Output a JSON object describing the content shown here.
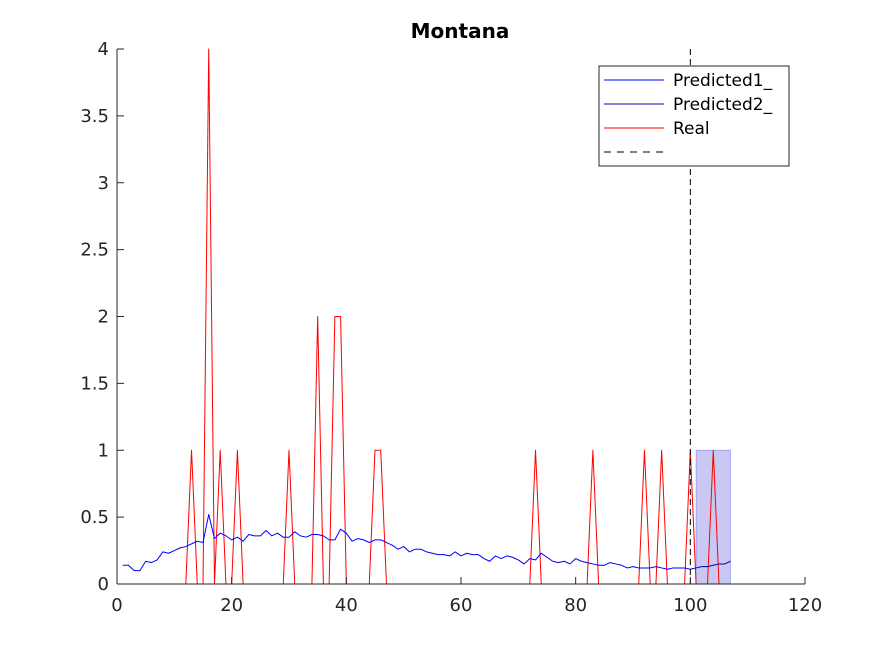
{
  "chart_data": {
    "type": "line",
    "title": "Montana",
    "xlabel": "",
    "ylabel": "",
    "xlim": [
      0,
      120
    ],
    "ylim": [
      0,
      4
    ],
    "xticks": [
      0,
      20,
      40,
      60,
      80,
      100,
      120
    ],
    "yticks": [
      0,
      0.5,
      1,
      1.5,
      2,
      2.5,
      3,
      3.5,
      4
    ],
    "grid": false,
    "legend_position": "top-right",
    "vline_x": 100,
    "shaded_region": {
      "x": [
        101,
        107
      ],
      "y": [
        0,
        1
      ],
      "color": "#c8c8f2"
    },
    "series": [
      {
        "name": "Predicted1_",
        "color": "#0000ff",
        "x": [
          1,
          2,
          3,
          4,
          5,
          6,
          7,
          8,
          9,
          10,
          11,
          12,
          13,
          14,
          15,
          16,
          17,
          18,
          19,
          20,
          21,
          22,
          23,
          24,
          25,
          26,
          27,
          28,
          29,
          30,
          31,
          32,
          33,
          34,
          35,
          36,
          37,
          38,
          39,
          40,
          41,
          42,
          43,
          44,
          45,
          46,
          47,
          48,
          49,
          50,
          51,
          52,
          53,
          54,
          55,
          56,
          57,
          58,
          59,
          60,
          61,
          62,
          63,
          64,
          65,
          66,
          67,
          68,
          69,
          70,
          71,
          72,
          73,
          74,
          75,
          76,
          77,
          78,
          79,
          80,
          81,
          82,
          83,
          84,
          85,
          86,
          87,
          88,
          89,
          90,
          91,
          92,
          93,
          94,
          95,
          96,
          97,
          98,
          99,
          100
        ],
        "y": [
          0.14,
          0.14,
          0.1,
          0.1,
          0.17,
          0.16,
          0.18,
          0.24,
          0.23,
          0.25,
          0.27,
          0.28,
          0.3,
          0.32,
          0.31,
          0.52,
          0.34,
          0.38,
          0.36,
          0.33,
          0.35,
          0.32,
          0.37,
          0.36,
          0.36,
          0.4,
          0.36,
          0.38,
          0.35,
          0.35,
          0.39,
          0.36,
          0.35,
          0.37,
          0.37,
          0.36,
          0.33,
          0.33,
          0.41,
          0.38,
          0.32,
          0.34,
          0.33,
          0.31,
          0.33,
          0.33,
          0.31,
          0.29,
          0.26,
          0.28,
          0.24,
          0.26,
          0.26,
          0.24,
          0.23,
          0.22,
          0.22,
          0.21,
          0.24,
          0.21,
          0.23,
          0.22,
          0.22,
          0.19,
          0.17,
          0.21,
          0.19,
          0.21,
          0.2,
          0.18,
          0.15,
          0.19,
          0.18,
          0.23,
          0.2,
          0.17,
          0.16,
          0.17,
          0.15,
          0.19,
          0.17,
          0.16,
          0.15,
          0.14,
          0.14,
          0.16,
          0.15,
          0.14,
          0.12,
          0.13,
          0.12,
          0.12,
          0.12,
          0.13,
          0.12,
          0.11,
          0.12,
          0.12,
          0.12,
          0.11
        ]
      },
      {
        "name": "Predicted2_",
        "color": "#0000a8",
        "x": [
          100,
          101,
          102,
          103,
          104,
          105,
          106,
          107
        ],
        "y": [
          0.11,
          0.12,
          0.13,
          0.13,
          0.14,
          0.15,
          0.15,
          0.17
        ]
      },
      {
        "name": "Real",
        "color": "#ff0000",
        "x": [
          1,
          2,
          3,
          4,
          5,
          6,
          7,
          8,
          9,
          10,
          11,
          12,
          13,
          14,
          15,
          16,
          17,
          18,
          19,
          20,
          21,
          22,
          23,
          24,
          25,
          26,
          27,
          28,
          29,
          30,
          31,
          32,
          33,
          34,
          35,
          36,
          37,
          38,
          39,
          40,
          41,
          42,
          43,
          44,
          45,
          46,
          47,
          48,
          49,
          50,
          51,
          52,
          53,
          54,
          55,
          56,
          57,
          58,
          59,
          60,
          61,
          62,
          63,
          64,
          65,
          66,
          67,
          68,
          69,
          70,
          71,
          72,
          73,
          74,
          75,
          76,
          77,
          78,
          79,
          80,
          81,
          82,
          83,
          84,
          85,
          86,
          87,
          88,
          89,
          90,
          91,
          92,
          93,
          94,
          95,
          96,
          97,
          98,
          99,
          100,
          101,
          102,
          103,
          104,
          105,
          106,
          107
        ],
        "y": [
          0,
          0,
          0,
          0,
          0,
          0,
          0,
          0,
          0,
          0,
          0,
          0,
          1,
          0,
          0,
          4,
          0,
          1,
          0,
          0,
          1,
          0,
          0,
          0,
          0,
          0,
          0,
          0,
          0,
          1,
          0,
          0,
          0,
          0,
          2,
          0,
          0,
          2,
          2,
          0,
          0,
          0,
          0,
          0,
          1,
          1,
          0,
          0,
          0,
          0,
          0,
          0,
          0,
          0,
          0,
          0,
          0,
          0,
          0,
          0,
          0,
          0,
          0,
          0,
          0,
          0,
          0,
          0,
          0,
          0,
          0,
          0,
          1,
          0,
          0,
          0,
          0,
          0,
          0,
          0,
          0,
          0,
          1,
          0,
          0,
          0,
          0,
          0,
          0,
          0,
          0,
          1,
          0,
          0,
          1,
          0,
          0,
          0,
          0,
          1,
          0,
          0,
          0,
          1,
          0,
          0,
          0
        ]
      },
      {
        "name": "",
        "color": "#000000",
        "dashed": true,
        "x": [],
        "y": []
      }
    ]
  }
}
